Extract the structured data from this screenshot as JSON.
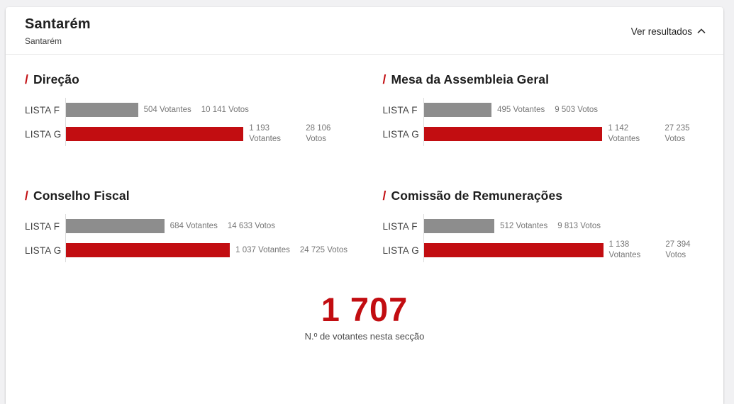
{
  "theme": {
    "accent_red": "#c20d11",
    "bar_gray": "#8d8d8d",
    "page_bg": "#f1f1f3"
  },
  "decor": {
    "slash": "/"
  },
  "header": {
    "title": "Santarém",
    "subtitle": "Santarém",
    "results_toggle_label": "Ver resultados",
    "results_toggle_icon": "chevron-up-icon"
  },
  "chart_data": [
    {
      "type": "bar",
      "orientation": "horizontal",
      "title": "Direção",
      "categories": [
        "LISTA F",
        "LISTA G"
      ],
      "series": [
        {
          "name": "Votantes",
          "values": [
            504,
            1193
          ]
        },
        {
          "name": "Votos",
          "values": [
            10141,
            28106
          ]
        }
      ],
      "bar_colors": [
        "#8d8d8d",
        "#c20d11"
      ],
      "xmax_votantes": 1900,
      "rows": [
        {
          "category": "LISTA F",
          "votantes": 504,
          "votos": 10141,
          "votantes_label": "504 Votantes",
          "votos_label": "10 141 Votos",
          "bar_pct": 25.5
        },
        {
          "category": "LISTA G",
          "votantes": 1193,
          "votos": 28106,
          "votantes_label": "1 193 Votantes",
          "votos_label": "28 106 Votos",
          "bar_pct": 62.8
        }
      ]
    },
    {
      "type": "bar",
      "orientation": "horizontal",
      "title": "Mesa da Assembleia Geral",
      "categories": [
        "LISTA F",
        "LISTA G"
      ],
      "series": [
        {
          "name": "Votantes",
          "values": [
            495,
            1142
          ]
        },
        {
          "name": "Votos",
          "values": [
            9503,
            27235
          ]
        }
      ],
      "bar_colors": [
        "#8d8d8d",
        "#c20d11"
      ],
      "xmax_votantes": 1900,
      "rows": [
        {
          "category": "LISTA F",
          "votantes": 495,
          "votos": 9503,
          "votantes_label": "495 Votantes",
          "votos_label": "9 503 Votos",
          "bar_pct": 24.0
        },
        {
          "category": "LISTA G",
          "votantes": 1142,
          "votos": 27235,
          "votantes_label": "1 142 Votantes",
          "votos_label": "27 235 Votos",
          "bar_pct": 63.2
        }
      ]
    },
    {
      "type": "bar",
      "orientation": "horizontal",
      "title": "Conselho Fiscal",
      "categories": [
        "LISTA F",
        "LISTA G"
      ],
      "series": [
        {
          "name": "Votantes",
          "values": [
            684,
            1037
          ]
        },
        {
          "name": "Votos",
          "values": [
            14633,
            24725
          ]
        }
      ],
      "bar_colors": [
        "#8d8d8d",
        "#c20d11"
      ],
      "xmax_votantes": 1900,
      "rows": [
        {
          "category": "LISTA F",
          "votantes": 684,
          "votos": 14633,
          "votantes_label": "684 Votantes",
          "votos_label": "14 633 Votos",
          "bar_pct": 34.8
        },
        {
          "category": "LISTA G",
          "votantes": 1037,
          "votos": 24725,
          "votantes_label": "1 037 Votantes",
          "votos_label": "24 725 Votos",
          "bar_pct": 58.0
        }
      ]
    },
    {
      "type": "bar",
      "orientation": "horizontal",
      "title": "Comissão de Remunerações",
      "categories": [
        "LISTA F",
        "LISTA G"
      ],
      "series": [
        {
          "name": "Votantes",
          "values": [
            512,
            1138
          ]
        },
        {
          "name": "Votos",
          "values": [
            9813,
            27394
          ]
        }
      ],
      "bar_colors": [
        "#8d8d8d",
        "#c20d11"
      ],
      "xmax_votantes": 1900,
      "rows": [
        {
          "category": "LISTA F",
          "votantes": 512,
          "votos": 9813,
          "votantes_label": "512 Votantes",
          "votos_label": "9 813 Votos",
          "bar_pct": 25.0
        },
        {
          "category": "LISTA G",
          "votantes": 1138,
          "votos": 27394,
          "votantes_label": "1 138 Votantes",
          "votos_label": "27 394 Votos",
          "bar_pct": 63.5
        }
      ]
    }
  ],
  "summary": {
    "value": "1 707",
    "caption": "N.º de votantes nesta secção"
  }
}
